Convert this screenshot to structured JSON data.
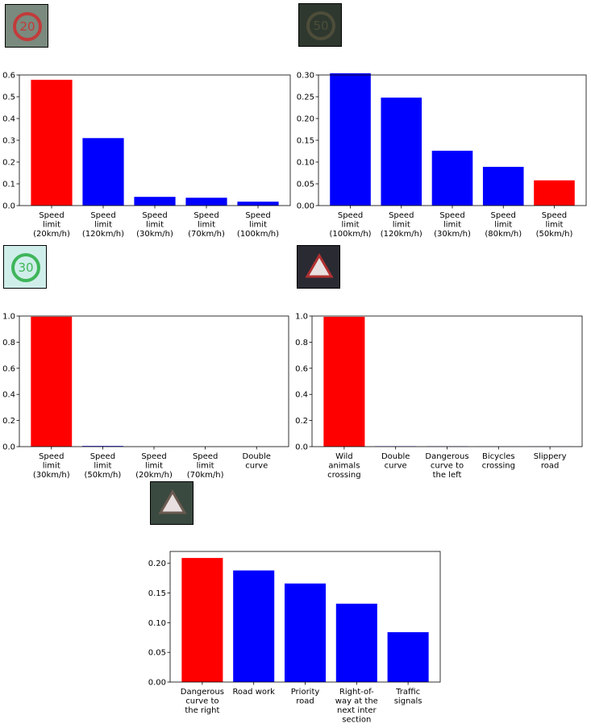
{
  "chart_data": [
    {
      "type": "bar",
      "categories": [
        "Speed\nlimit\n(20km/h)",
        "Speed\nlimit\n(120km/h)",
        "Speed\nlimit\n(30km/h)",
        "Speed\nlimit\n(70km/h)",
        "Speed\nlimit\n(100km/h)"
      ],
      "values": [
        0.578,
        0.31,
        0.04,
        0.036,
        0.018
      ],
      "colors": [
        "#ff0000",
        "#0000ff",
        "#0000ff",
        "#0000ff",
        "#0000ff"
      ],
      "yticks": [
        "0.0",
        "0.1",
        "0.2",
        "0.3",
        "0.4",
        "0.5",
        "0.6"
      ],
      "ylim": [
        0,
        0.6
      ],
      "thumbnail": {
        "text": "20",
        "bg": "#7a8a7e",
        "ring": "#c23b3b"
      }
    },
    {
      "type": "bar",
      "categories": [
        "Speed\nlimit\n(100km/h)",
        "Speed\nlimit\n(120km/h)",
        "Speed\nlimit\n(30km/h)",
        "Speed\nlimit\n(80km/h)",
        "Speed\nlimit\n(50km/h)"
      ],
      "values": [
        0.304,
        0.248,
        0.126,
        0.089,
        0.058
      ],
      "colors": [
        "#0000ff",
        "#0000ff",
        "#0000ff",
        "#0000ff",
        "#ff0000"
      ],
      "yticks": [
        "0.00",
        "0.05",
        "0.10",
        "0.15",
        "0.20",
        "0.25",
        "0.30"
      ],
      "ylim": [
        0,
        0.3
      ],
      "thumbnail": {
        "text": "50",
        "bg": "#2e382e",
        "ring": "#4d4d3a"
      }
    },
    {
      "type": "bar",
      "categories": [
        "Speed\nlimit\n(30km/h)",
        "Speed\nlimit\n(50km/h)",
        "Speed\nlimit\n(20km/h)",
        "Speed\nlimit\n(70km/h)",
        "Double\ncurve"
      ],
      "values": [
        0.995,
        0.005,
        0.0,
        0.0,
        0.0
      ],
      "colors": [
        "#ff0000",
        "#0000ff",
        "#0000ff",
        "#0000ff",
        "#0000ff"
      ],
      "yticks": [
        "0.0",
        "0.2",
        "0.4",
        "0.6",
        "0.8",
        "1.0"
      ],
      "ylim": [
        0,
        1.0
      ],
      "thumbnail": {
        "text": "30",
        "bg": "#cfeeea",
        "ring": "#3fb55a"
      }
    },
    {
      "type": "bar",
      "categories": [
        "Wild\nanimals\ncrossing",
        "Double\ncurve",
        "Dangerous\ncurve to\nthe left",
        "Bicycles\ncrossing",
        "Slippery\nroad"
      ],
      "values": [
        0.994,
        0.003,
        0.002,
        0.001,
        0.001
      ],
      "colors": [
        "#ff0000",
        "#0000ff",
        "#0000ff",
        "#0000ff",
        "#0000ff"
      ],
      "yticks": [
        "0.0",
        "0.2",
        "0.4",
        "0.6",
        "0.8",
        "1.0"
      ],
      "ylim": [
        0,
        1.0
      ],
      "thumbnail": {
        "text": "",
        "bg": "#2a2a33",
        "ring": "#b03030"
      }
    },
    {
      "type": "bar",
      "categories": [
        "Dangerous\ncurve to\nthe right",
        "Road work",
        "Priority\nroad",
        "Right-of-\nway at the\nnext inter\nsection",
        "Traffic\nsignals"
      ],
      "values": [
        0.209,
        0.188,
        0.166,
        0.132,
        0.084
      ],
      "colors": [
        "#ff0000",
        "#0000ff",
        "#0000ff",
        "#0000ff",
        "#0000ff"
      ],
      "yticks": [
        "0.00",
        "0.05",
        "0.10",
        "0.15",
        "0.20"
      ],
      "ylim": [
        0,
        0.22
      ],
      "thumbnail": {
        "text": "",
        "bg": "#3a4a40",
        "ring": "#6a5a50"
      }
    }
  ]
}
